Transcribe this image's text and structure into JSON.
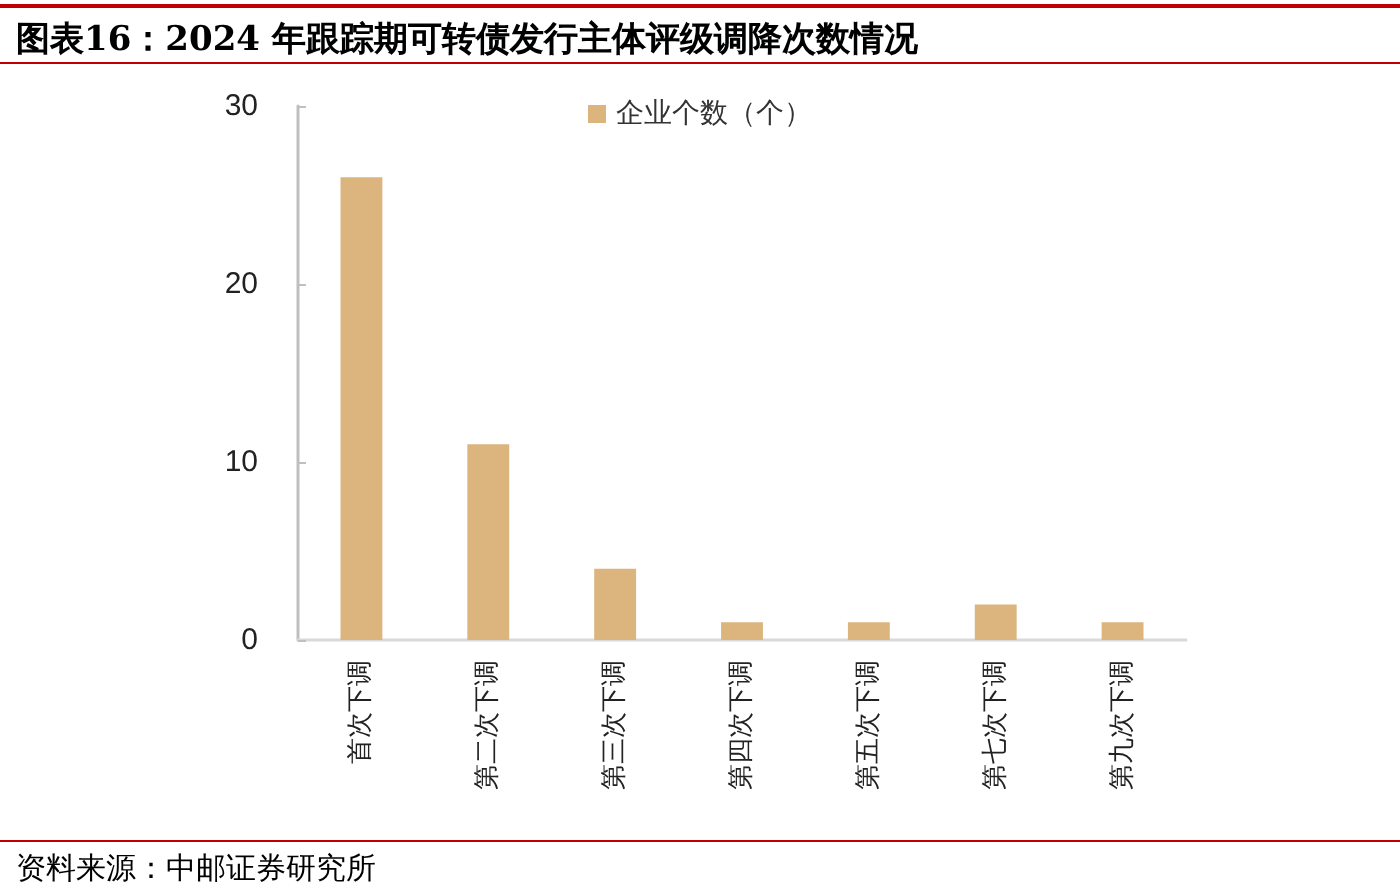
{
  "chart_data": {
    "type": "bar",
    "title": "图表16：2024 年跟踪期可转债发行主体评级调降次数情况",
    "categories": [
      "首次下调",
      "第二次下调",
      "第三次下调",
      "第四次下调",
      "第五次下调",
      "第七次下调",
      "第九次下调"
    ],
    "series": [
      {
        "name": "企业个数（个）",
        "color": "#dbb47e",
        "values": [
          26,
          11,
          4,
          1,
          1,
          2,
          1
        ]
      }
    ],
    "ylim": [
      0,
      30
    ],
    "yticks": [
      0,
      10,
      20,
      30
    ],
    "legend": "top",
    "annotations": [
      "资料来源：中邮证券研究所"
    ]
  }
}
